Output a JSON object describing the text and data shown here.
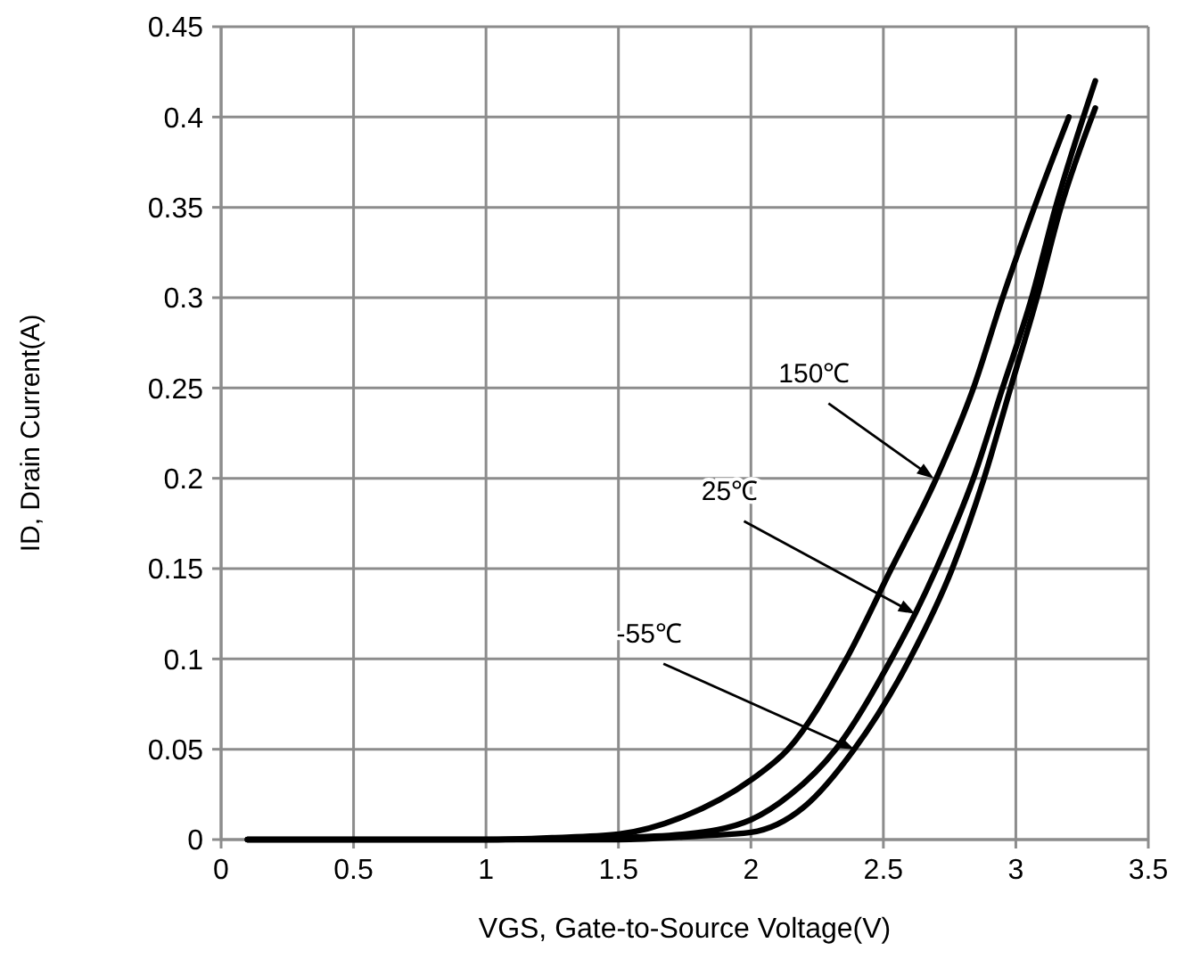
{
  "chart_data": {
    "type": "line",
    "xlabel": "VGS, Gate-to-Source Voltage(V)",
    "ylabel": "ID, Drain Current(A)",
    "xlim": [
      0,
      3.5
    ],
    "xticks": [
      0,
      0.5,
      1,
      1.5,
      2,
      2.5,
      3,
      3.5
    ],
    "ylim": [
      0,
      0.45
    ],
    "yticks": [
      0,
      0.05,
      0.1,
      0.15,
      0.2,
      0.25,
      0.3,
      0.35,
      0.4,
      0.45
    ],
    "grid": true,
    "marker": "none",
    "line_style": "solid",
    "series": [
      {
        "color": "#000000",
        "x": [
          0.1,
          1.0,
          1.25,
          1.5,
          1.75,
          2.0,
          2.14,
          2.36,
          2.53,
          2.7,
          2.84,
          2.95,
          3.07,
          3.2
        ],
        "values": [
          0,
          0,
          0.001,
          0.003,
          0.013,
          0.033,
          0.05,
          0.1,
          0.15,
          0.2,
          0.25,
          0.3,
          0.35,
          0.4
        ]
      },
      {
        "color": "#000000",
        "x": [
          0.1,
          1.0,
          1.5,
          1.75,
          2.0,
          2.15,
          2.32,
          2.53,
          2.62,
          2.7,
          2.84,
          2.95,
          3.06,
          3.15,
          3.3
        ],
        "values": [
          0,
          0,
          0.001,
          0.003,
          0.011,
          0.025,
          0.05,
          0.1,
          0.125,
          0.15,
          0.2,
          0.25,
          0.3,
          0.35,
          0.42
        ]
      },
      {
        "color": "#000000",
        "x": [
          0.1,
          1.0,
          1.5,
          1.8,
          2.0,
          2.2,
          2.39,
          2.6,
          2.76,
          2.88,
          2.98,
          3.08,
          3.17,
          3.3
        ],
        "values": [
          0,
          0,
          0,
          0.002,
          0.004,
          0.018,
          0.05,
          0.1,
          0.15,
          0.2,
          0.25,
          0.3,
          0.35,
          0.405
        ]
      }
    ],
    "annotations": [
      {
        "text": "150℃",
        "x": 2.69,
        "y": 0.2
      },
      {
        "text": "25℃",
        "x": 2.62,
        "y": 0.125
      },
      {
        "text": "-55℃",
        "x": 2.39,
        "y": 0.05
      }
    ]
  }
}
